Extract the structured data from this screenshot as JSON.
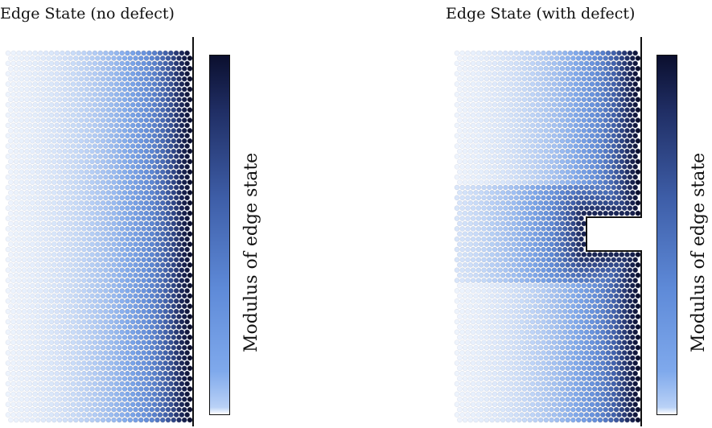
{
  "chart_data": [
    {
      "type": "heatmap",
      "title": "Edge State (no defect)",
      "colorbar_label": "Modulus of edge state",
      "defect": false,
      "lattice": {
        "columns": 34,
        "rows": 72,
        "edge": "right"
      },
      "colormap": [
        "#ffffff",
        "#b9d1f6",
        "#7fa9ec",
        "#5e8ad8",
        "#3e5ea8",
        "#1f2d63",
        "#0b0f2e"
      ]
    },
    {
      "type": "heatmap",
      "title": "Edge State (with defect)",
      "colorbar_label": "Modulus of edge state",
      "defect": true,
      "lattice": {
        "columns": 34,
        "rows": 72,
        "edge": "right"
      },
      "colormap": [
        "#ffffff",
        "#b9d1f6",
        "#7fa9ec",
        "#5e8ad8",
        "#3e5ea8",
        "#1f2d63",
        "#0b0f2e"
      ]
    }
  ]
}
